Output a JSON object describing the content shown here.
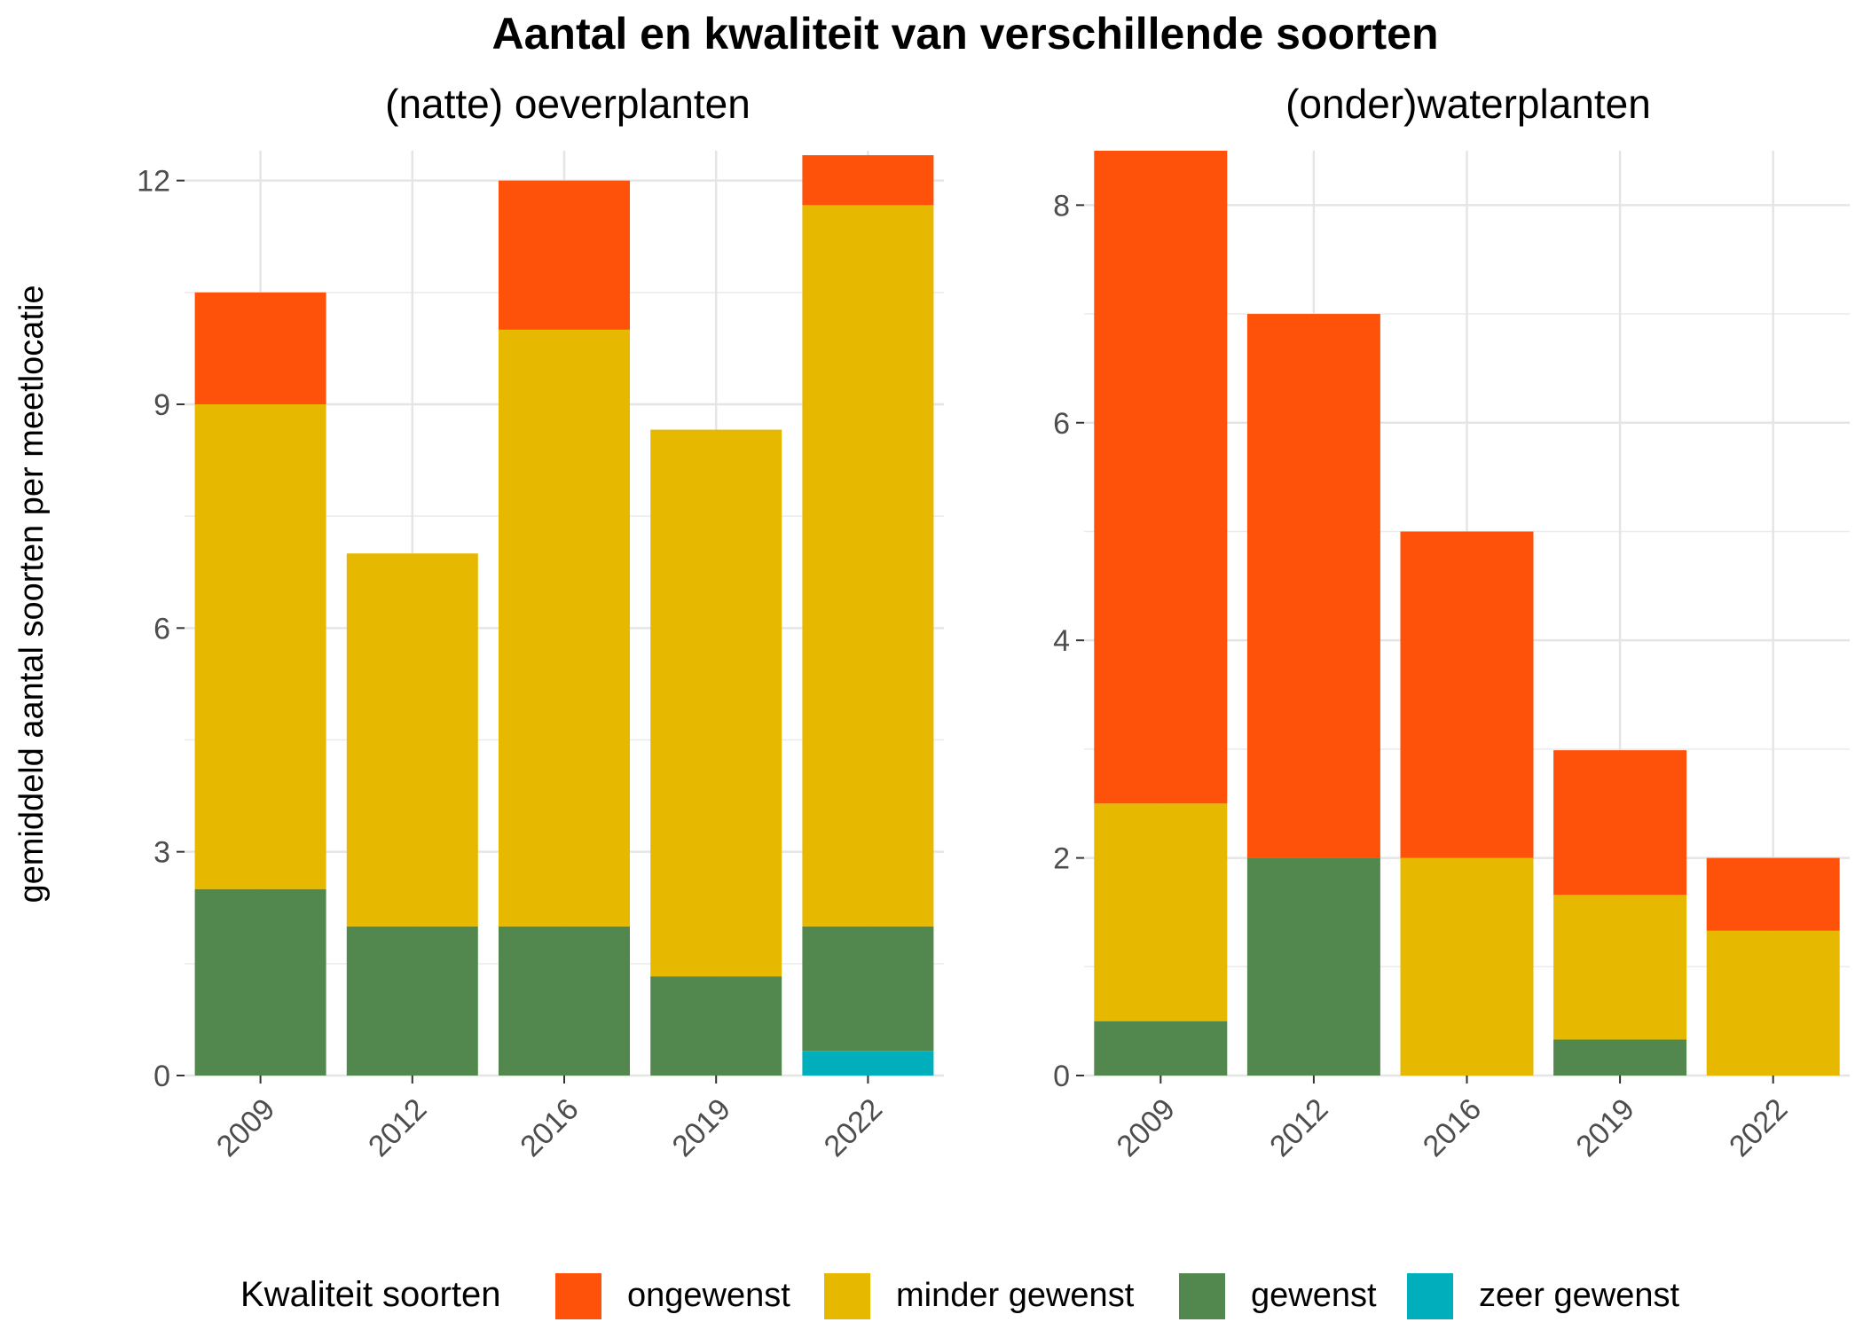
{
  "chart_data": {
    "type": "bar",
    "stacked": true,
    "title": "Aantal en kwaliteit van verschillende soorten",
    "ylabel": "gemiddeld aantal soorten per meetlocatie",
    "legend": {
      "title": "Kwaliteit soorten",
      "placement": "bottom",
      "entries": [
        "ongewenst",
        "minder gewenst",
        "gewenst",
        "zeer gewenst"
      ]
    },
    "colors": {
      "ongewenst": "#FE520A",
      "minder gewenst": "#E6B800",
      "gewenst": "#52884D",
      "zeer gewenst": "#00AFBB"
    },
    "grid": true,
    "panels": [
      {
        "title": "(natte) oeverplanten",
        "categories": [
          "2009",
          "2012",
          "2016",
          "2019",
          "2022"
        ],
        "ylim": [
          0,
          12.4
        ],
        "yticks": [
          0,
          3,
          6,
          9,
          12
        ],
        "series": [
          {
            "name": "zeer gewenst",
            "values": [
              0,
              0,
              0,
              0,
              0.33
            ]
          },
          {
            "name": "gewenst",
            "values": [
              2.5,
              2,
              2,
              1.33,
              1.67
            ]
          },
          {
            "name": "minder gewenst",
            "values": [
              6.5,
              5,
              8,
              7.33,
              9.67
            ]
          },
          {
            "name": "ongewenst",
            "values": [
              1.5,
              0,
              2,
              0,
              0.67
            ]
          }
        ]
      },
      {
        "title": "(onder)waterplanten",
        "categories": [
          "2009",
          "2012",
          "2016",
          "2019",
          "2022"
        ],
        "ylim": [
          0,
          8.5
        ],
        "yticks": [
          0,
          2,
          4,
          6,
          8
        ],
        "series": [
          {
            "name": "zeer gewenst",
            "values": [
              0,
              0,
              0,
              0,
              0
            ]
          },
          {
            "name": "gewenst",
            "values": [
              0.5,
              2,
              0,
              0.33,
              0
            ]
          },
          {
            "name": "minder gewenst",
            "values": [
              2,
              0,
              2,
              1.33,
              1.33
            ]
          },
          {
            "name": "ongewenst",
            "values": [
              6,
              5,
              3,
              1.33,
              0.67
            ]
          }
        ]
      }
    ]
  }
}
